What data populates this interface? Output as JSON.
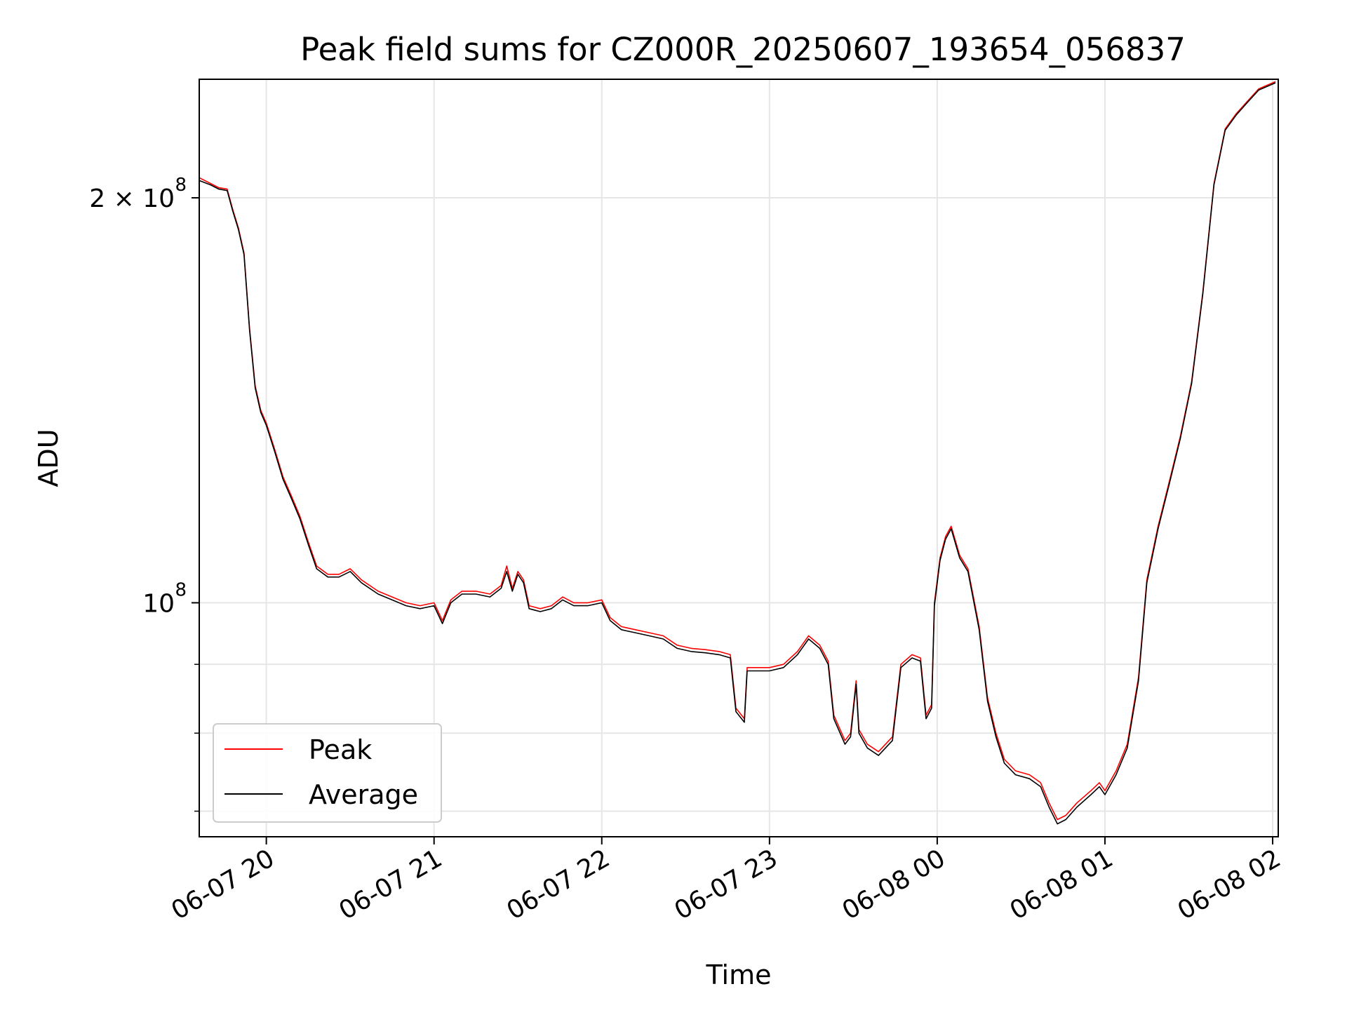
{
  "chart_data": {
    "type": "line",
    "title": "Peak field sums for CZ000R_20250607_193654_056837",
    "xlabel": "Time",
    "ylabel": "ADU",
    "yscale": "log",
    "ylim": [
      67000000,
      245000000
    ],
    "xlim": [
      "2025-06-07 19:36",
      "2025-06-08 02:02"
    ],
    "grid": true,
    "legend_position": "lower-left",
    "x_ticks": [
      {
        "value": "2025-06-07 20:00",
        "label": "06-07 20"
      },
      {
        "value": "2025-06-07 21:00",
        "label": "06-07 21"
      },
      {
        "value": "2025-06-07 22:00",
        "label": "06-07 22"
      },
      {
        "value": "2025-06-07 23:00",
        "label": "06-07 23"
      },
      {
        "value": "2025-06-08 00:00",
        "label": "06-08 00"
      },
      {
        "value": "2025-06-08 01:00",
        "label": "06-08 01"
      },
      {
        "value": "2025-06-08 02:00",
        "label": "06-08 02"
      }
    ],
    "y_ticks_major": [
      {
        "value": 100000000,
        "label_base": "10",
        "label_exp": "8"
      },
      {
        "value": 200000000,
        "label_base": "2 × 10",
        "label_exp": "8"
      }
    ],
    "y_ticks_minor": [
      70000000,
      80000000,
      90000000
    ],
    "series": [
      {
        "name": "Peak",
        "color": "#ff0000",
        "points": [
          [
            "2025-06-07 19:36",
            207000000
          ],
          [
            "2025-06-07 19:40",
            205000000
          ],
          [
            "2025-06-07 19:43",
            203500000
          ],
          [
            "2025-06-07 19:46",
            203000000
          ],
          [
            "2025-06-07 19:48",
            196000000
          ],
          [
            "2025-06-07 19:50",
            190000000
          ],
          [
            "2025-06-07 19:52",
            182000000
          ],
          [
            "2025-06-07 19:54",
            160000000
          ],
          [
            "2025-06-07 19:56",
            145000000
          ],
          [
            "2025-06-07 19:58",
            139000000
          ],
          [
            "2025-06-07 20:00",
            136000000
          ],
          [
            "2025-06-07 20:03",
            130000000
          ],
          [
            "2025-06-07 20:06",
            124000000
          ],
          [
            "2025-06-07 20:09",
            120000000
          ],
          [
            "2025-06-07 20:12",
            116000000
          ],
          [
            "2025-06-07 20:15",
            111000000
          ],
          [
            "2025-06-07 20:18",
            106500000
          ],
          [
            "2025-06-07 20:22",
            105000000
          ],
          [
            "2025-06-07 20:26",
            105000000
          ],
          [
            "2025-06-07 20:30",
            106000000
          ],
          [
            "2025-06-07 20:34",
            104000000
          ],
          [
            "2025-06-07 20:40",
            102000000
          ],
          [
            "2025-06-07 20:45",
            101000000
          ],
          [
            "2025-06-07 20:50",
            100000000
          ],
          [
            "2025-06-07 20:55",
            99500000
          ],
          [
            "2025-06-07 21:00",
            100000000
          ],
          [
            "2025-06-07 21:03",
            97000000
          ],
          [
            "2025-06-07 21:06",
            100500000
          ],
          [
            "2025-06-07 21:10",
            102000000
          ],
          [
            "2025-06-07 21:15",
            102000000
          ],
          [
            "2025-06-07 21:20",
            101500000
          ],
          [
            "2025-06-07 21:24",
            103000000
          ],
          [
            "2025-06-07 21:26",
            106500000
          ],
          [
            "2025-06-07 21:28",
            102500000
          ],
          [
            "2025-06-07 21:30",
            105500000
          ],
          [
            "2025-06-07 21:32",
            104000000
          ],
          [
            "2025-06-07 21:34",
            99500000
          ],
          [
            "2025-06-07 21:38",
            99000000
          ],
          [
            "2025-06-07 21:42",
            99500000
          ],
          [
            "2025-06-07 21:46",
            101000000
          ],
          [
            "2025-06-07 21:50",
            100000000
          ],
          [
            "2025-06-07 21:55",
            100000000
          ],
          [
            "2025-06-07 22:00",
            100500000
          ],
          [
            "2025-06-07 22:03",
            97500000
          ],
          [
            "2025-06-07 22:07",
            96000000
          ],
          [
            "2025-06-07 22:12",
            95500000
          ],
          [
            "2025-06-07 22:17",
            95000000
          ],
          [
            "2025-06-07 22:22",
            94500000
          ],
          [
            "2025-06-07 22:27",
            93000000
          ],
          [
            "2025-06-07 22:32",
            92500000
          ],
          [
            "2025-06-07 22:37",
            92300000
          ],
          [
            "2025-06-07 22:42",
            92000000
          ],
          [
            "2025-06-07 22:46",
            91500000
          ],
          [
            "2025-06-07 22:48",
            83500000
          ],
          [
            "2025-06-07 22:51",
            82000000
          ],
          [
            "2025-06-07 22:52",
            89500000
          ],
          [
            "2025-06-07 22:56",
            89500000
          ],
          [
            "2025-06-07 23:00",
            89500000
          ],
          [
            "2025-06-07 23:05",
            90000000
          ],
          [
            "2025-06-07 23:10",
            92000000
          ],
          [
            "2025-06-07 23:14",
            94500000
          ],
          [
            "2025-06-07 23:18",
            93000000
          ],
          [
            "2025-06-07 23:21",
            90500000
          ],
          [
            "2025-06-07 23:23",
            82500000
          ],
          [
            "2025-06-07 23:27",
            79000000
          ],
          [
            "2025-06-07 23:29",
            80000000
          ],
          [
            "2025-06-07 23:31",
            87500000
          ],
          [
            "2025-06-07 23:32",
            80500000
          ],
          [
            "2025-06-07 23:35",
            78500000
          ],
          [
            "2025-06-07 23:39",
            77500000
          ],
          [
            "2025-06-07 23:44",
            79500000
          ],
          [
            "2025-06-07 23:47",
            90000000
          ],
          [
            "2025-06-07 23:51",
            91500000
          ],
          [
            "2025-06-07 23:54",
            91000000
          ],
          [
            "2025-06-07 23:56",
            82500000
          ],
          [
            "2025-06-07 23:58",
            84000000
          ],
          [
            "2025-06-07 23:59",
            100000000
          ],
          [
            "2025-06-08 00:01",
            108000000
          ],
          [
            "2025-06-08 00:03",
            112000000
          ],
          [
            "2025-06-08 00:05",
            114000000
          ],
          [
            "2025-06-08 00:08",
            108500000
          ],
          [
            "2025-06-08 00:11",
            106000000
          ],
          [
            "2025-06-08 00:15",
            96000000
          ],
          [
            "2025-06-08 00:18",
            85000000
          ],
          [
            "2025-06-08 00:21",
            80000000
          ],
          [
            "2025-06-08 00:24",
            76500000
          ],
          [
            "2025-06-08 00:28",
            75000000
          ],
          [
            "2025-06-08 00:33",
            74500000
          ],
          [
            "2025-06-08 00:37",
            73500000
          ],
          [
            "2025-06-08 00:40",
            71000000
          ],
          [
            "2025-06-08 00:43",
            69000000
          ],
          [
            "2025-06-08 00:46",
            69500000
          ],
          [
            "2025-06-08 00:50",
            71000000
          ],
          [
            "2025-06-08 00:55",
            72500000
          ],
          [
            "2025-06-08 00:58",
            73500000
          ],
          [
            "2025-06-08 01:00",
            72500000
          ],
          [
            "2025-06-08 01:04",
            75000000
          ],
          [
            "2025-06-08 01:08",
            78500000
          ],
          [
            "2025-06-08 01:12",
            88000000
          ],
          [
            "2025-06-08 01:15",
            104000000
          ],
          [
            "2025-06-08 01:19",
            114000000
          ],
          [
            "2025-06-08 01:23",
            123000000
          ],
          [
            "2025-06-08 01:27",
            133000000
          ],
          [
            "2025-06-08 01:31",
            146000000
          ],
          [
            "2025-06-08 01:35",
            170000000
          ],
          [
            "2025-06-08 01:39",
            205000000
          ],
          [
            "2025-06-08 01:43",
            225000000
          ],
          [
            "2025-06-08 01:47",
            231000000
          ],
          [
            "2025-06-08 01:51",
            236000000
          ],
          [
            "2025-06-08 01:55",
            241000000
          ],
          [
            "2025-06-08 02:01",
            244000000
          ]
        ]
      },
      {
        "name": "Average",
        "color": "#000000",
        "points": [
          [
            "2025-06-07 19:36",
            206000000
          ],
          [
            "2025-06-07 19:40",
            204500000
          ],
          [
            "2025-06-07 19:43",
            203000000
          ],
          [
            "2025-06-07 19:46",
            202500000
          ],
          [
            "2025-06-07 19:48",
            195500000
          ],
          [
            "2025-06-07 19:50",
            189500000
          ],
          [
            "2025-06-07 19:52",
            181500000
          ],
          [
            "2025-06-07 19:54",
            159500000
          ],
          [
            "2025-06-07 19:56",
            144500000
          ],
          [
            "2025-06-07 19:58",
            138500000
          ],
          [
            "2025-06-07 20:00",
            135500000
          ],
          [
            "2025-06-07 20:03",
            129500000
          ],
          [
            "2025-06-07 20:06",
            123500000
          ],
          [
            "2025-06-07 20:09",
            119500000
          ],
          [
            "2025-06-07 20:12",
            115500000
          ],
          [
            "2025-06-07 20:15",
            110500000
          ],
          [
            "2025-06-07 20:18",
            106000000
          ],
          [
            "2025-06-07 20:22",
            104500000
          ],
          [
            "2025-06-07 20:26",
            104500000
          ],
          [
            "2025-06-07 20:30",
            105500000
          ],
          [
            "2025-06-07 20:34",
            103500000
          ],
          [
            "2025-06-07 20:40",
            101500000
          ],
          [
            "2025-06-07 20:45",
            100500000
          ],
          [
            "2025-06-07 20:50",
            99500000
          ],
          [
            "2025-06-07 20:55",
            99000000
          ],
          [
            "2025-06-07 21:00",
            99500000
          ],
          [
            "2025-06-07 21:03",
            96500000
          ],
          [
            "2025-06-07 21:06",
            100000000
          ],
          [
            "2025-06-07 21:10",
            101500000
          ],
          [
            "2025-06-07 21:15",
            101500000
          ],
          [
            "2025-06-07 21:20",
            101000000
          ],
          [
            "2025-06-07 21:24",
            102500000
          ],
          [
            "2025-06-07 21:26",
            105500000
          ],
          [
            "2025-06-07 21:28",
            102000000
          ],
          [
            "2025-06-07 21:30",
            105000000
          ],
          [
            "2025-06-07 21:32",
            103500000
          ],
          [
            "2025-06-07 21:34",
            99000000
          ],
          [
            "2025-06-07 21:38",
            98500000
          ],
          [
            "2025-06-07 21:42",
            99000000
          ],
          [
            "2025-06-07 21:46",
            100500000
          ],
          [
            "2025-06-07 21:50",
            99500000
          ],
          [
            "2025-06-07 21:55",
            99500000
          ],
          [
            "2025-06-07 22:00",
            100000000
          ],
          [
            "2025-06-07 22:03",
            97000000
          ],
          [
            "2025-06-07 22:07",
            95500000
          ],
          [
            "2025-06-07 22:12",
            95000000
          ],
          [
            "2025-06-07 22:17",
            94500000
          ],
          [
            "2025-06-07 22:22",
            94000000
          ],
          [
            "2025-06-07 22:27",
            92500000
          ],
          [
            "2025-06-07 22:32",
            92000000
          ],
          [
            "2025-06-07 22:37",
            91800000
          ],
          [
            "2025-06-07 22:42",
            91500000
          ],
          [
            "2025-06-07 22:46",
            91000000
          ],
          [
            "2025-06-07 22:48",
            83000000
          ],
          [
            "2025-06-07 22:51",
            81500000
          ],
          [
            "2025-06-07 22:52",
            89000000
          ],
          [
            "2025-06-07 22:56",
            89000000
          ],
          [
            "2025-06-07 23:00",
            89000000
          ],
          [
            "2025-06-07 23:05",
            89500000
          ],
          [
            "2025-06-07 23:10",
            91500000
          ],
          [
            "2025-06-07 23:14",
            94000000
          ],
          [
            "2025-06-07 23:18",
            92500000
          ],
          [
            "2025-06-07 23:21",
            90000000
          ],
          [
            "2025-06-07 23:23",
            82000000
          ],
          [
            "2025-06-07 23:27",
            78500000
          ],
          [
            "2025-06-07 23:29",
            79500000
          ],
          [
            "2025-06-07 23:31",
            87000000
          ],
          [
            "2025-06-07 23:32",
            80000000
          ],
          [
            "2025-06-07 23:35",
            78000000
          ],
          [
            "2025-06-07 23:39",
            77000000
          ],
          [
            "2025-06-07 23:44",
            79000000
          ],
          [
            "2025-06-07 23:47",
            89500000
          ],
          [
            "2025-06-07 23:51",
            91000000
          ],
          [
            "2025-06-07 23:54",
            90500000
          ],
          [
            "2025-06-07 23:56",
            82000000
          ],
          [
            "2025-06-07 23:58",
            83500000
          ],
          [
            "2025-06-07 23:59",
            99500000
          ],
          [
            "2025-06-08 00:01",
            107500000
          ],
          [
            "2025-06-08 00:03",
            111500000
          ],
          [
            "2025-06-08 00:05",
            113500000
          ],
          [
            "2025-06-08 00:08",
            108000000
          ],
          [
            "2025-06-08 00:11",
            105500000
          ],
          [
            "2025-06-08 00:15",
            95500000
          ],
          [
            "2025-06-08 00:18",
            84500000
          ],
          [
            "2025-06-08 00:21",
            79500000
          ],
          [
            "2025-06-08 00:24",
            76000000
          ],
          [
            "2025-06-08 00:28",
            74500000
          ],
          [
            "2025-06-08 00:33",
            74000000
          ],
          [
            "2025-06-08 00:37",
            73000000
          ],
          [
            "2025-06-08 00:40",
            70500000
          ],
          [
            "2025-06-08 00:43",
            68500000
          ],
          [
            "2025-06-08 00:46",
            69000000
          ],
          [
            "2025-06-08 00:50",
            70500000
          ],
          [
            "2025-06-08 00:55",
            72000000
          ],
          [
            "2025-06-08 00:58",
            73000000
          ],
          [
            "2025-06-08 01:00",
            72000000
          ],
          [
            "2025-06-08 01:04",
            74500000
          ],
          [
            "2025-06-08 01:08",
            78000000
          ],
          [
            "2025-06-08 01:12",
            87500000
          ],
          [
            "2025-06-08 01:15",
            103500000
          ],
          [
            "2025-06-08 01:19",
            113500000
          ],
          [
            "2025-06-08 01:23",
            122500000
          ],
          [
            "2025-06-08 01:27",
            132500000
          ],
          [
            "2025-06-08 01:31",
            145500000
          ],
          [
            "2025-06-08 01:35",
            169500000
          ],
          [
            "2025-06-08 01:39",
            204500000
          ],
          [
            "2025-06-08 01:43",
            224500000
          ],
          [
            "2025-06-08 01:47",
            230500000
          ],
          [
            "2025-06-08 01:51",
            235500000
          ],
          [
            "2025-06-08 01:55",
            240500000
          ],
          [
            "2025-06-08 02:01",
            243500000
          ]
        ]
      }
    ]
  }
}
